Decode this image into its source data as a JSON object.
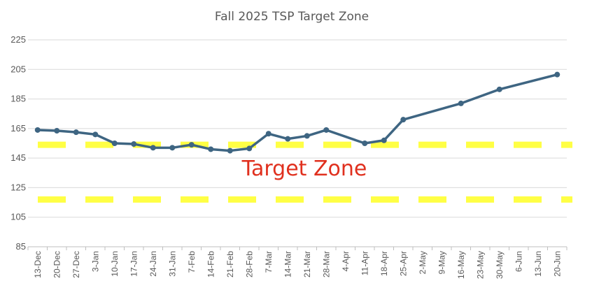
{
  "chart_data": {
    "type": "line",
    "title": "Fall 2025 TSP Target Zone",
    "xlabel": "",
    "ylabel": "",
    "ylim": [
      85,
      225
    ],
    "yticks": [
      85,
      105,
      125,
      145,
      165,
      185,
      205,
      225
    ],
    "grid": true,
    "categories": [
      "13-Dec",
      "20-Dec",
      "27-Dec",
      "3-Jan",
      "10-Jan",
      "17-Jan",
      "24-Jan",
      "31-Jan",
      "7-Feb",
      "14-Feb",
      "21-Feb",
      "28-Feb",
      "7-Mar",
      "14-Mar",
      "21-Mar",
      "28-Mar",
      "4-Apr",
      "11-Apr",
      "18-Apr",
      "25-Apr",
      "2-May",
      "9-May",
      "16-May",
      "23-May",
      "30-May",
      "6-Jun",
      "13-Jun",
      "20-Jun"
    ],
    "series": [
      {
        "values": [
          {
            "x": "13-Dec",
            "y": 164
          },
          {
            "x": "20-Dec",
            "y": 163.5
          },
          {
            "x": "27-Dec",
            "y": 162.5
          },
          {
            "x": "3-Jan",
            "y": 161
          },
          {
            "x": "10-Jan",
            "y": 155
          },
          {
            "x": "17-Jan",
            "y": 154.5
          },
          {
            "x": "24-Jan",
            "y": 152
          },
          {
            "x": "31-Jan",
            "y": 152
          },
          {
            "x": "7-Feb",
            "y": 154
          },
          {
            "x": "14-Feb",
            "y": 151
          },
          {
            "x": "21-Feb",
            "y": 150
          },
          {
            "x": "28-Feb",
            "y": 151.5
          },
          {
            "x": "7-Mar",
            "y": 161.5
          },
          {
            "x": "14-Mar",
            "y": 158
          },
          {
            "x": "21-Mar",
            "y": 160
          },
          {
            "x": "28-Mar",
            "y": 164
          },
          {
            "x": "11-Apr",
            "y": 155
          },
          {
            "x": "18-Apr",
            "y": 157
          },
          {
            "x": "25-Apr",
            "y": 171
          },
          {
            "x": "16-May",
            "y": 182
          },
          {
            "x": "30-May",
            "y": 191.5
          },
          {
            "x": "20-Jun",
            "y": 201.5
          }
        ],
        "color": "#3e6582"
      }
    ],
    "target_zone": {
      "label": "Target Zone",
      "upper": 154,
      "lower": 117,
      "color": "#ffff44"
    }
  }
}
